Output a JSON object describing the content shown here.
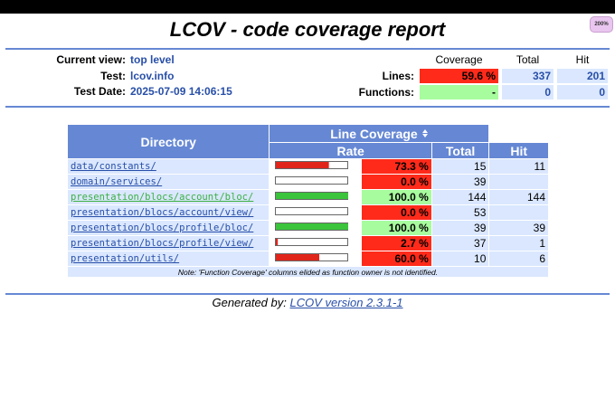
{
  "zoom_badge": "200%",
  "header": {
    "title": "LCOV - code coverage report",
    "info": [
      {
        "label": "Current view:",
        "value": "top level"
      },
      {
        "label": "Test:",
        "value": "lcov.info"
      },
      {
        "label": "Test Date:",
        "value": "2025-07-09 14:06:15"
      }
    ],
    "summary": {
      "columns": [
        "Coverage",
        "Total",
        "Hit"
      ],
      "rows": [
        {
          "label": "Lines:",
          "coverage": "59.6 %",
          "total": 337,
          "hit": 201
        },
        {
          "label": "Functions:",
          "coverage": "-",
          "total": 0,
          "hit": 0
        }
      ]
    }
  },
  "table": {
    "headers": {
      "directory": "Directory",
      "line_coverage": "Line Coverage",
      "rate": "Rate",
      "total": "Total",
      "hit": "Hit"
    },
    "rows": [
      {
        "directory": "data/constants/",
        "rate": {
          "value": 73.3,
          "label": "73.3 %"
        },
        "total": 15,
        "hit": 11
      },
      {
        "directory": "domain/services/",
        "rate": {
          "value": 0.0,
          "label": "0.0 %"
        },
        "total": 39,
        "hit": null
      },
      {
        "directory": "presentation/blocs/account/bloc/",
        "rate": {
          "value": 100.0,
          "label": "100.0 %"
        },
        "total": 144,
        "hit": 144
      },
      {
        "directory": "presentation/blocs/account/view/",
        "rate": {
          "value": 0.0,
          "label": "0.0 %"
        },
        "total": 53,
        "hit": null
      },
      {
        "directory": "presentation/blocs/profile/bloc/",
        "rate": {
          "value": 100.0,
          "label": "100.0 %"
        },
        "total": 39,
        "hit": 39
      },
      {
        "directory": "presentation/blocs/profile/view/",
        "rate": {
          "value": 2.7,
          "label": "2.7 %"
        },
        "total": 37,
        "hit": 1
      },
      {
        "directory": "presentation/utils/",
        "rate": {
          "value": 60.0,
          "label": "60.0 %"
        },
        "total": 10,
        "hit": 6
      }
    ],
    "note": "Note: 'Function Coverage' columns elided as function owner is not identified."
  },
  "footer": {
    "text": "Generated by:",
    "link": "LCOV version 2.3.1-1"
  }
}
